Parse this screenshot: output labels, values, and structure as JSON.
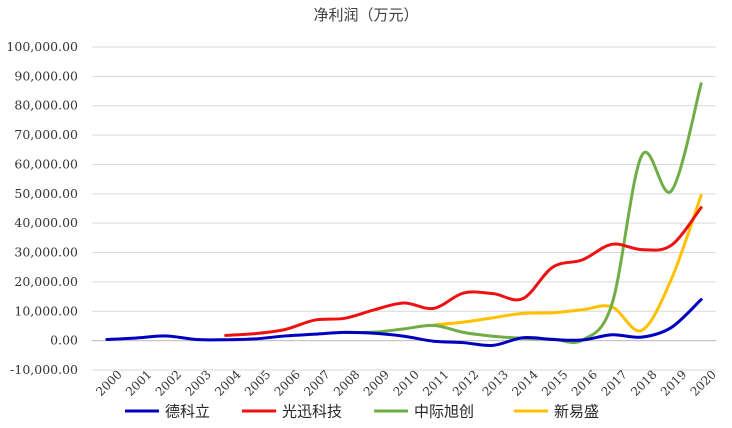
{
  "chart_data": {
    "type": "line",
    "title": "净利润（万元）",
    "xlabel": "",
    "ylabel": "",
    "ylim": [
      -10000,
      100000
    ],
    "x": [
      "2000",
      "2001",
      "2002",
      "2003",
      "2004",
      "2005",
      "2006",
      "2007",
      "2008",
      "2009",
      "2010",
      "2011",
      "2012",
      "2013",
      "2014",
      "2015",
      "2016",
      "2017",
      "2018",
      "2019",
      "2020"
    ],
    "y_ticks": [
      "-10,000.00",
      "0.00",
      "10,000.00",
      "20,000.00",
      "30,000.00",
      "40,000.00",
      "50,000.00",
      "60,000.00",
      "70,000.00",
      "80,000.00",
      "90,000.00",
      "100,000.00"
    ],
    "grid": true,
    "legend_position": "bottom",
    "series": [
      {
        "name": "德科立",
        "color": "#0000c0",
        "values": [
          400,
          900,
          1600,
          400,
          300,
          600,
          1600,
          2200,
          2800,
          2500,
          1500,
          -200,
          -700,
          -1600,
          1000,
          400,
          200,
          2000,
          1200,
          4500,
          14000
        ]
      },
      {
        "name": "光迅科技",
        "color": "#ee1111",
        "values": [
          null,
          null,
          null,
          null,
          1800,
          2400,
          3800,
          7000,
          7600,
          10500,
          12800,
          11000,
          16200,
          16000,
          14300,
          25000,
          27500,
          32800,
          31000,
          32500,
          45300
        ]
      },
      {
        "name": "中际旭创",
        "color": "#70ad47",
        "values": [
          null,
          null,
          null,
          null,
          null,
          null,
          null,
          null,
          2800,
          2900,
          4000,
          5200,
          2800,
          1500,
          800,
          500,
          200,
          12500,
          63000,
          51000,
          87500
        ]
      },
      {
        "name": "新易盛",
        "color": "#ffc000",
        "values": [
          null,
          null,
          null,
          null,
          null,
          null,
          null,
          null,
          null,
          null,
          null,
          5300,
          6300,
          7800,
          9300,
          9500,
          10500,
          11500,
          3500,
          21000,
          49500
        ]
      }
    ]
  }
}
